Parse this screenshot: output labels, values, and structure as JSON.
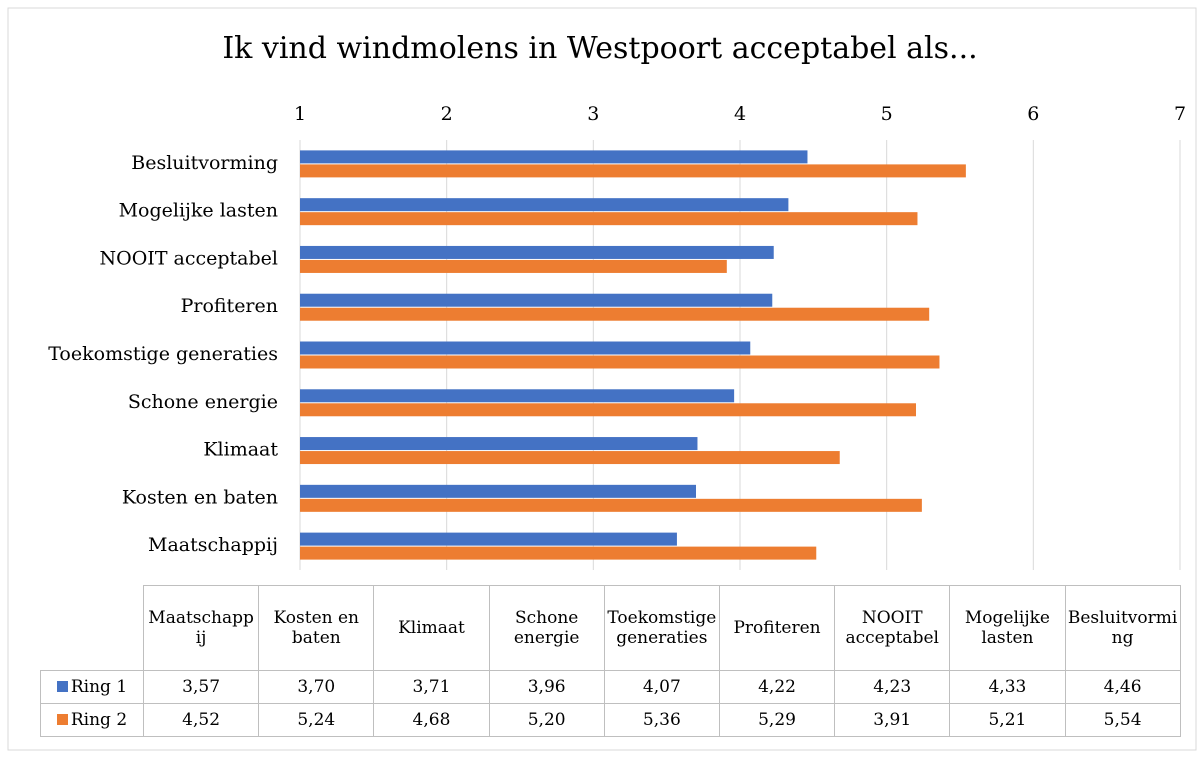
{
  "chart_data": {
    "type": "barh",
    "title": "Ik vind windmolens in Westpoort acceptabel als...",
    "categories": [
      "Maatschappij",
      "Kosten en baten",
      "Klimaat",
      "Schone energie",
      "Toekomstige generaties",
      "Profiteren",
      "NOOIT acceptabel",
      "Mogelijke lasten",
      "Besluitvorming"
    ],
    "series": [
      {
        "name": "Ring 1",
        "color": "#4472c4",
        "values": [
          3.57,
          3.7,
          3.71,
          3.96,
          4.07,
          4.22,
          4.23,
          4.33,
          4.46
        ],
        "value_labels": [
          "3,57",
          "3,70",
          "3,71",
          "3,96",
          "4,07",
          "4,22",
          "4,23",
          "4,33",
          "4,46"
        ]
      },
      {
        "name": "Ring 2",
        "color": "#ed7d31",
        "values": [
          4.52,
          5.24,
          4.68,
          5.2,
          5.36,
          5.29,
          3.91,
          5.21,
          5.54
        ],
        "value_labels": [
          "4,52",
          "5,24",
          "4,68",
          "5,20",
          "5,36",
          "5,29",
          "3,91",
          "5,21",
          "5,54"
        ]
      }
    ],
    "xlim": [
      1,
      7
    ],
    "xticks": [
      1,
      2,
      3,
      4,
      5,
      6,
      7
    ],
    "grid": true
  }
}
